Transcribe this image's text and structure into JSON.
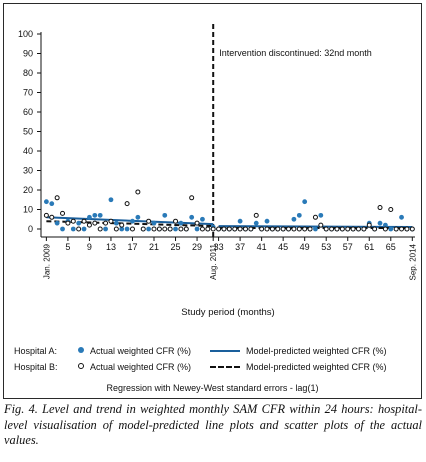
{
  "chart_data": {
    "type": "scatter",
    "title": "",
    "xlabel": "Study period (months)",
    "ylabel": "",
    "xlim": [
      0,
      69
    ],
    "ylim": [
      0,
      100
    ],
    "y_ticks": [
      0,
      10,
      20,
      30,
      40,
      50,
      60,
      70,
      80,
      90,
      100
    ],
    "x_ticks": [
      {
        "x": 1,
        "label": "Jan. 2009"
      },
      {
        "x": 5,
        "label": "5"
      },
      {
        "x": 9,
        "label": "9"
      },
      {
        "x": 13,
        "label": "13"
      },
      {
        "x": 17,
        "label": "17"
      },
      {
        "x": 21,
        "label": "21"
      },
      {
        "x": 25,
        "label": "25"
      },
      {
        "x": 29,
        "label": "29"
      },
      {
        "x": 32,
        "label": "Aug. 2011"
      },
      {
        "x": 33,
        "label": "33"
      },
      {
        "x": 37,
        "label": "37"
      },
      {
        "x": 41,
        "label": "41"
      },
      {
        "x": 45,
        "label": "45"
      },
      {
        "x": 49,
        "label": "49"
      },
      {
        "x": 53,
        "label": "53"
      },
      {
        "x": 57,
        "label": "57"
      },
      {
        "x": 61,
        "label": "61"
      },
      {
        "x": 65,
        "label": "65"
      },
      {
        "x": 69,
        "label": "Sep. 2014"
      }
    ],
    "intervention": {
      "x": 32,
      "label": "Intervention discontinued: 32nd month"
    },
    "series": [
      {
        "name": "Hospital A: Actual weighted CFR (%)",
        "kind": "scatter-filled",
        "color": "#2a7ab8",
        "points": [
          [
            1,
            14
          ],
          [
            2,
            13
          ],
          [
            3,
            3
          ],
          [
            4,
            0
          ],
          [
            5,
            4
          ],
          [
            6,
            0
          ],
          [
            7,
            3
          ],
          [
            8,
            0
          ],
          [
            9,
            6
          ],
          [
            10,
            7
          ],
          [
            11,
            7
          ],
          [
            12,
            0
          ],
          [
            13,
            15
          ],
          [
            14,
            3
          ],
          [
            15,
            0
          ],
          [
            16,
            0
          ],
          [
            17,
            4
          ],
          [
            18,
            6
          ],
          [
            19,
            0
          ],
          [
            20,
            0
          ],
          [
            21,
            3
          ],
          [
            22,
            0
          ],
          [
            23,
            7
          ],
          [
            24,
            0
          ],
          [
            25,
            0
          ],
          [
            26,
            3
          ],
          [
            27,
            0
          ],
          [
            28,
            6
          ],
          [
            29,
            0
          ],
          [
            30,
            5
          ],
          [
            31,
            0
          ],
          [
            32,
            1
          ],
          [
            33,
            0
          ],
          [
            34,
            0
          ],
          [
            35,
            0
          ],
          [
            36,
            0
          ],
          [
            37,
            4
          ],
          [
            38,
            0
          ],
          [
            39,
            0
          ],
          [
            40,
            3
          ],
          [
            41,
            0
          ],
          [
            42,
            4
          ],
          [
            43,
            0
          ],
          [
            44,
            0
          ],
          [
            45,
            0
          ],
          [
            46,
            0
          ],
          [
            47,
            5
          ],
          [
            48,
            7
          ],
          [
            49,
            14
          ],
          [
            50,
            0
          ],
          [
            51,
            0
          ],
          [
            52,
            7
          ],
          [
            53,
            0
          ],
          [
            54,
            0
          ],
          [
            55,
            0
          ],
          [
            56,
            0
          ],
          [
            57,
            0
          ],
          [
            58,
            0
          ],
          [
            59,
            0
          ],
          [
            60,
            0
          ],
          [
            61,
            3
          ],
          [
            62,
            0
          ],
          [
            63,
            3
          ],
          [
            64,
            2
          ],
          [
            65,
            0
          ],
          [
            66,
            0
          ],
          [
            67,
            6
          ],
          [
            68,
            0
          ],
          [
            69,
            0
          ]
        ]
      },
      {
        "name": "Hospital B: Actual weighted CFR (%)",
        "kind": "scatter-open",
        "color": "#111111",
        "points": [
          [
            1,
            7
          ],
          [
            2,
            6
          ],
          [
            3,
            16
          ],
          [
            4,
            8
          ],
          [
            5,
            3
          ],
          [
            6,
            4
          ],
          [
            7,
            0
          ],
          [
            8,
            4
          ],
          [
            9,
            2
          ],
          [
            10,
            3
          ],
          [
            11,
            0
          ],
          [
            12,
            3
          ],
          [
            13,
            4
          ],
          [
            14,
            0
          ],
          [
            15,
            2
          ],
          [
            16,
            13
          ],
          [
            17,
            0
          ],
          [
            18,
            19
          ],
          [
            19,
            0
          ],
          [
            20,
            4
          ],
          [
            21,
            0
          ],
          [
            22,
            0
          ],
          [
            23,
            0
          ],
          [
            24,
            0
          ],
          [
            25,
            4
          ],
          [
            26,
            0
          ],
          [
            27,
            0
          ],
          [
            28,
            16
          ],
          [
            29,
            3
          ],
          [
            30,
            0
          ],
          [
            31,
            0
          ],
          [
            32,
            0
          ],
          [
            33,
            0
          ],
          [
            34,
            0
          ],
          [
            35,
            0
          ],
          [
            36,
            0
          ],
          [
            37,
            0
          ],
          [
            38,
            0
          ],
          [
            39,
            0
          ],
          [
            40,
            7
          ],
          [
            41,
            0
          ],
          [
            42,
            0
          ],
          [
            43,
            0
          ],
          [
            44,
            0
          ],
          [
            45,
            0
          ],
          [
            46,
            0
          ],
          [
            47,
            0
          ],
          [
            48,
            0
          ],
          [
            49,
            0
          ],
          [
            50,
            0
          ],
          [
            51,
            6
          ],
          [
            52,
            2
          ],
          [
            53,
            0
          ],
          [
            54,
            0
          ],
          [
            55,
            0
          ],
          [
            56,
            0
          ],
          [
            57,
            0
          ],
          [
            58,
            0
          ],
          [
            59,
            0
          ],
          [
            60,
            0
          ],
          [
            61,
            2
          ],
          [
            62,
            0
          ],
          [
            63,
            11
          ],
          [
            64,
            0
          ],
          [
            65,
            10
          ],
          [
            66,
            0
          ],
          [
            67,
            0
          ],
          [
            68,
            0
          ],
          [
            69,
            0
          ]
        ]
      },
      {
        "name": "Hospital A: Model-predicted weighted CFR (%)",
        "kind": "line-solid",
        "color": "#1a5f9c",
        "segments": [
          [
            [
              1,
              6
            ],
            [
              32,
              2.5
            ]
          ],
          [
            [
              33,
              1.5
            ],
            [
              69,
              1
            ]
          ]
        ]
      },
      {
        "name": "Hospital B: Model-predicted weighted CFR (%)",
        "kind": "line-dashed",
        "color": "#111111",
        "segments": [
          [
            [
              1,
              4
            ],
            [
              32,
              1.5
            ]
          ],
          [
            [
              33,
              0.5
            ],
            [
              69,
              0.5
            ]
          ]
        ]
      }
    ],
    "legend": {
      "rows": [
        {
          "group": "Hospital A:",
          "scatter": "Actual weighted CFR (%)",
          "line": "Model-predicted weighted CFR (%)"
        },
        {
          "group": "Hospital B:",
          "scatter": "Actual weighted CFR (%)",
          "line": "Model-predicted weighted CFR (%)"
        }
      ],
      "note": "Regression with Newey-West standard errors - lag(1)"
    }
  },
  "caption": "Fig. 4. Level and trend in weighted monthly SAM CFR within 24 hours: hospital-level visualisation of model-predicted line plots and scatter plots of the actual values.",
  "colors": {
    "hospital_a": "#2a7ab8",
    "hospital_b": "#111111",
    "axis": "#111111"
  }
}
